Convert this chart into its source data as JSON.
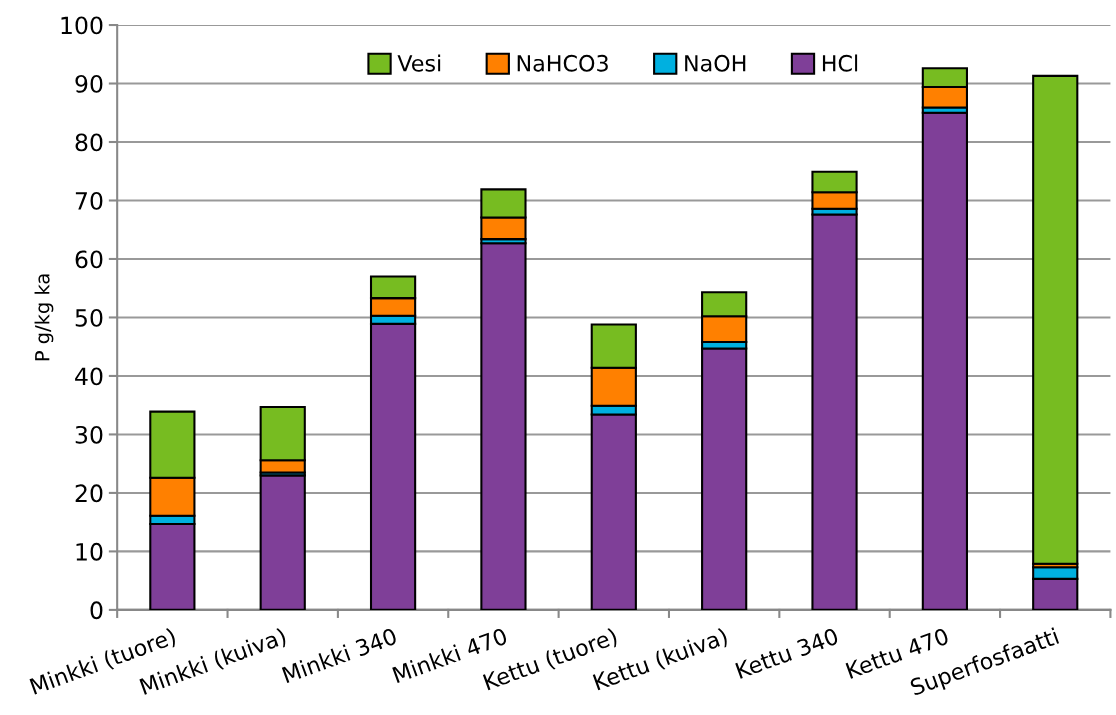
{
  "chart_data": {
    "type": "bar",
    "stacked": true,
    "ylabel": "P g/kg ka",
    "categories": [
      "Minkki (tuore)",
      "Minkki (kuiva)",
      "Minkki 340",
      "Minkki 470",
      "Kettu (tuore)",
      "Kettu (kuiva)",
      "Kettu 340",
      "Kettu 470",
      "Superfosfaatti"
    ],
    "series": [
      {
        "name": "HCl",
        "color": "#7f3f98",
        "values": [
          14.7,
          23.0,
          48.9,
          62.7,
          33.4,
          44.7,
          67.6,
          85.0,
          5.3
        ]
      },
      {
        "name": "NaOH",
        "color": "#00b0e0",
        "values": [
          1.4,
          0.5,
          1.4,
          0.7,
          1.5,
          1.1,
          1.0,
          0.9,
          2.0
        ]
      },
      {
        "name": "NaHCO3",
        "color": "#ff8000",
        "values": [
          6.5,
          2.1,
          3.0,
          3.7,
          6.5,
          4.4,
          2.8,
          3.5,
          0.6
        ]
      },
      {
        "name": "Vesi",
        "color": "#77bc21",
        "values": [
          11.3,
          9.1,
          3.7,
          4.8,
          7.4,
          4.1,
          3.5,
          3.2,
          83.4
        ]
      }
    ],
    "ylim": [
      0,
      100
    ],
    "yticks": [
      0,
      10,
      20,
      30,
      40,
      50,
      60,
      70,
      80,
      90,
      100
    ],
    "grid": "y",
    "legend": "top"
  }
}
